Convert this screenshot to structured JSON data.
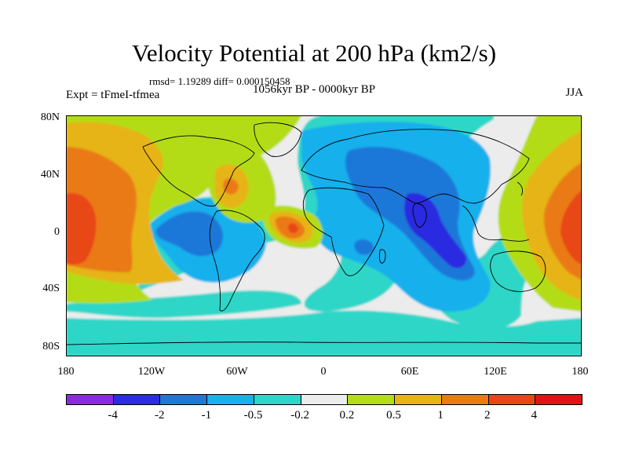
{
  "title": "Velocity Potential at 200 hPa (km2/s)",
  "stats": "rmsd= 1.19289 diff= 0.000150458",
  "period": "1056kyr BP - 0000kyr BP",
  "experiment": "Expt = tFmeI-tfmea",
  "season": "JJA",
  "lat_ticks": [
    "80N",
    "40N",
    "0",
    "40S",
    "80S"
  ],
  "lon_ticks": [
    "180",
    "120W",
    "60W",
    "0",
    "60E",
    "120E",
    "180"
  ],
  "colorbar": {
    "labels": [
      "-4",
      "-2",
      "-1",
      "-0.5",
      "-0.2",
      "0.2",
      "0.5",
      "1",
      "2",
      "4"
    ],
    "colors": [
      "#8a2be2",
      "#2c2ce0",
      "#1e78d8",
      "#19b0ec",
      "#2dd6c8",
      "#ececec",
      "#b4dc18",
      "#e6b414",
      "#ea7a12",
      "#e84614",
      "#e01414"
    ]
  }
}
